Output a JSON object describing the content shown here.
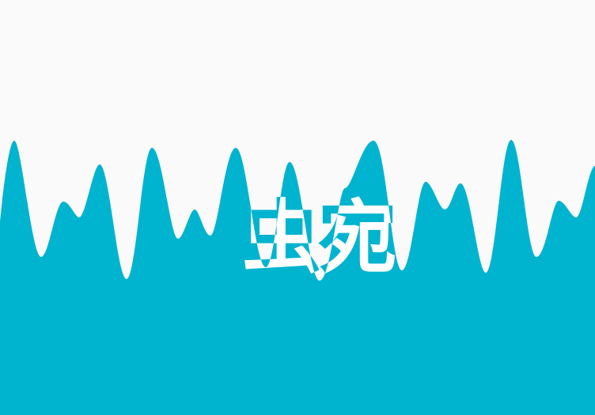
{
  "colors": {
    "background": "#fafafa",
    "wave": "#00b4cf",
    "text_on_background": "#00b4cf",
    "text_on_wave": "#ffffff"
  },
  "text": {
    "label": "虫宛"
  }
}
